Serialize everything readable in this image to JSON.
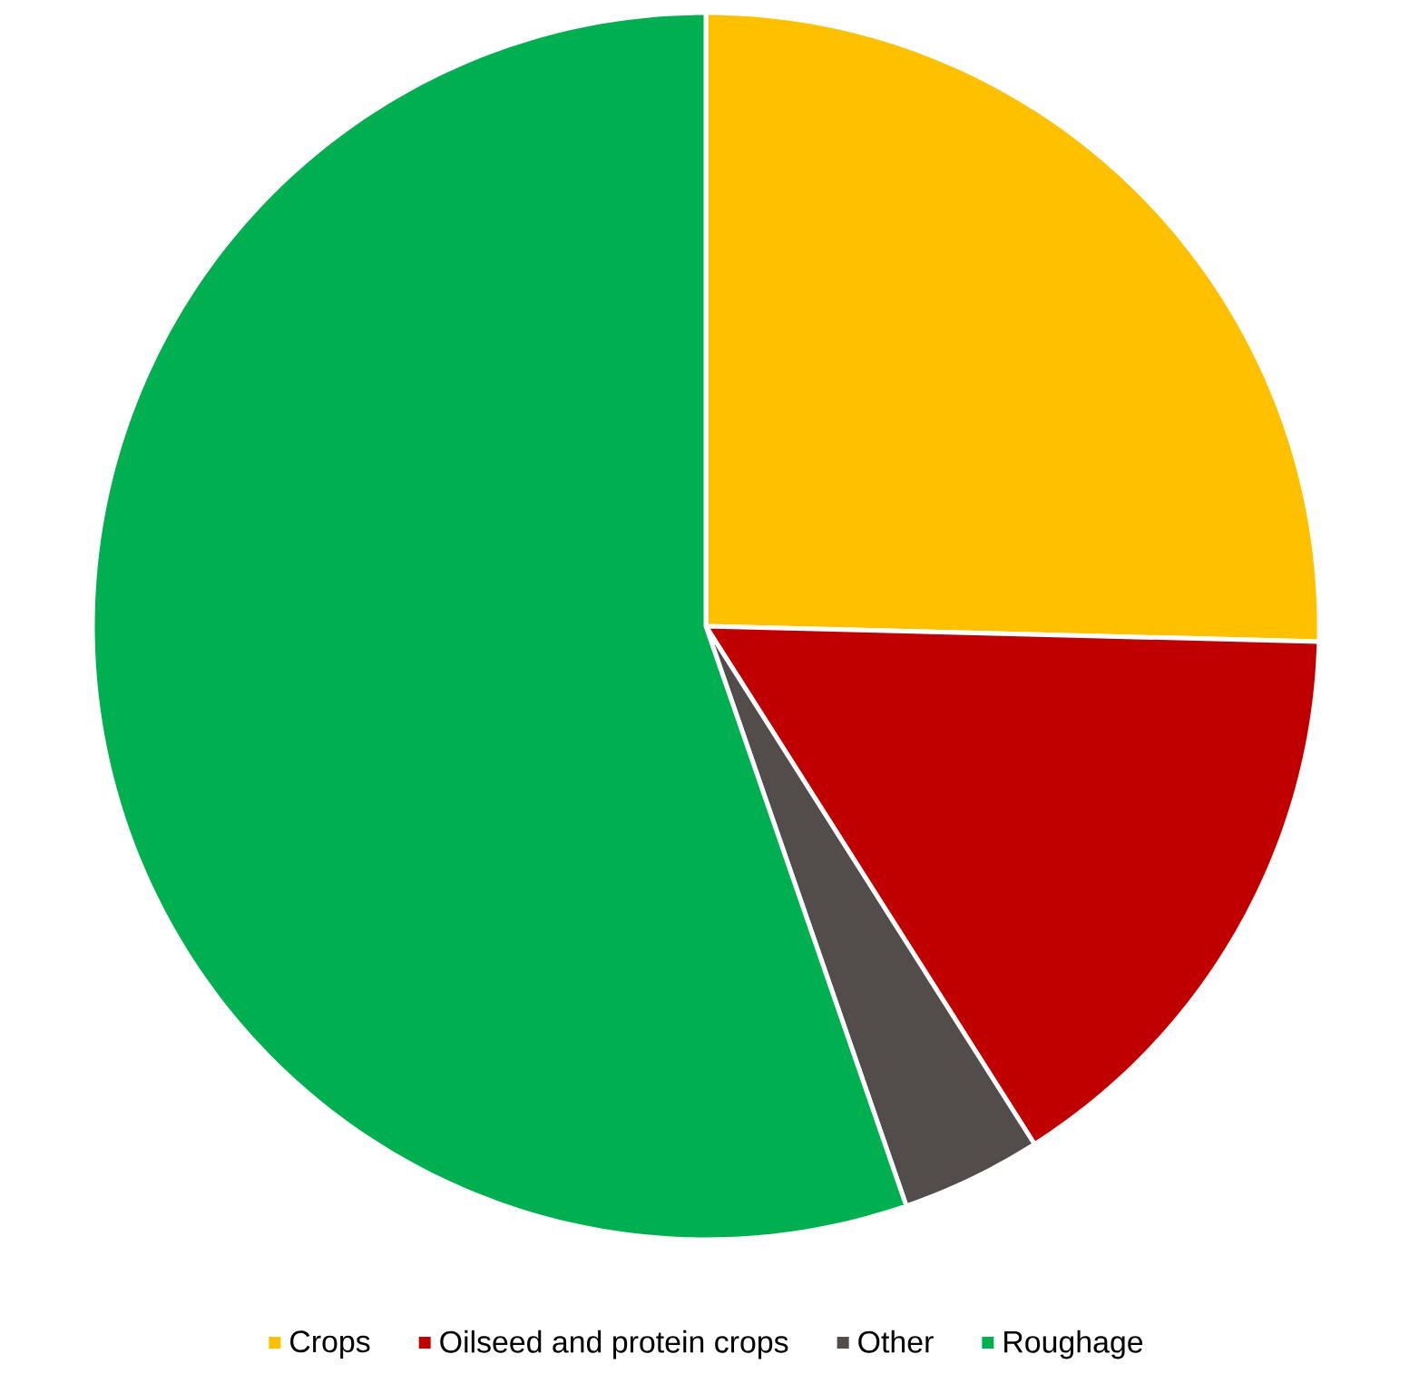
{
  "chart_data": {
    "type": "pie",
    "categories": [
      "Crops",
      "Oilseed and protein crops",
      "Other",
      "Roughage"
    ],
    "values": [
      25.4,
      15.6,
      3.7,
      55.3
    ],
    "colors": [
      "#ffc000",
      "#c00000",
      "#524c4b",
      "#00b050"
    ],
    "legend": "bottom"
  }
}
